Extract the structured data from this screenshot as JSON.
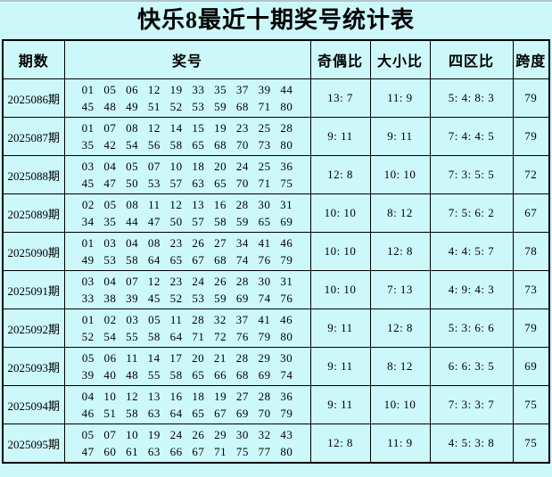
{
  "title": "快乐8最近十期奖号统计表",
  "colors": {
    "background": "#ccf8fa",
    "border": "#000000",
    "text": "#000000"
  },
  "headers": {
    "period": "期数",
    "numbers": "奖号",
    "odd_even": "奇偶比",
    "big_small": "大小比",
    "four_zone": "四区比",
    "span": "跨度"
  },
  "rows": [
    {
      "period": "2025086期",
      "nums1": "01 05 06 12 19 33 35 37 39 44",
      "nums2": "45 48 49 51 52 53 59 68 71 80",
      "odd_even": "13: 7",
      "big_small": "11: 9",
      "four_zone": "5: 4: 8: 3",
      "span": "79"
    },
    {
      "period": "2025087期",
      "nums1": "01 07 08 12 14 15 19 23 25 28",
      "nums2": "35 42 54 56 58 65 68 70 73 80",
      "odd_even": "9: 11",
      "big_small": "9: 11",
      "four_zone": "7: 4: 4: 5",
      "span": "79"
    },
    {
      "period": "2025088期",
      "nums1": "03 04 05 07 10 18 20 24 25 36",
      "nums2": "45 47 50 53 57 63 65 70 71 75",
      "odd_even": "12: 8",
      "big_small": "10: 10",
      "four_zone": "7: 3: 5: 5",
      "span": "72"
    },
    {
      "period": "2025089期",
      "nums1": "02 05 08 11 12 13 16 28 30 31",
      "nums2": "34 35 44 47 50 57 58 59 65 69",
      "odd_even": "10: 10",
      "big_small": "8: 12",
      "four_zone": "7: 5: 6: 2",
      "span": "67"
    },
    {
      "period": "2025090期",
      "nums1": "01 03 04 08 23 26 27 34 41 46",
      "nums2": "49 53 58 64 65 67 68 74 76 79",
      "odd_even": "10: 10",
      "big_small": "12: 8",
      "four_zone": "4: 4: 5: 7",
      "span": "78"
    },
    {
      "period": "2025091期",
      "nums1": "03 04 07 12 23 24 26 28 30 31",
      "nums2": "33 38 39 45 52 53 59 69 74 76",
      "odd_even": "10: 10",
      "big_small": "7: 13",
      "four_zone": "4: 9: 4: 3",
      "span": "73"
    },
    {
      "period": "2025092期",
      "nums1": "01 02 03 05 11 28 32 37 41 46",
      "nums2": "52 54 55 58 64 71 72 76 79 80",
      "odd_even": "9: 11",
      "big_small": "12: 8",
      "four_zone": "5: 3: 6: 6",
      "span": "79"
    },
    {
      "period": "2025093期",
      "nums1": "05 06 11 14 17 20 21 28 29 30",
      "nums2": "39 40 48 55 58 65 66 68 69 74",
      "odd_even": "9: 11",
      "big_small": "8: 12",
      "four_zone": "6: 6: 3: 5",
      "span": "69"
    },
    {
      "period": "2025094期",
      "nums1": "04 10 12 13 16 18 19 27 28 36",
      "nums2": "46 51 58 63 64 65 67 69 70 79",
      "odd_even": "9: 11",
      "big_small": "10: 10",
      "four_zone": "7: 3: 3: 7",
      "span": "75"
    },
    {
      "period": "2025095期",
      "nums1": "05 07 10 19 24 26 29 30 32 43",
      "nums2": "47 60 61 63 66 67 71 75 77 80",
      "odd_even": "12: 8",
      "big_small": "11: 9",
      "four_zone": "4: 5: 3: 8",
      "span": "75"
    }
  ],
  "chart_data": {
    "type": "table",
    "title": "快乐8最近十期奖号统计表",
    "columns": [
      "期数",
      "奖号",
      "奇偶比",
      "大小比",
      "四区比",
      "跨度"
    ],
    "rows": [
      [
        "2025086期",
        "01 05 06 12 19 33 35 37 39 44 45 48 49 51 52 53 59 68 71 80",
        "13:7",
        "11:9",
        "5:4:8:3",
        79
      ],
      [
        "2025087期",
        "01 07 08 12 14 15 19 23 25 28 35 42 54 56 58 65 68 70 73 80",
        "9:11",
        "9:11",
        "7:4:4:5",
        79
      ],
      [
        "2025088期",
        "03 04 05 07 10 18 20 24 25 36 45 47 50 53 57 63 65 70 71 75",
        "12:8",
        "10:10",
        "7:3:5:5",
        72
      ],
      [
        "2025089期",
        "02 05 08 11 12 13 16 28 30 31 34 35 44 47 50 57 58 59 65 69",
        "10:10",
        "8:12",
        "7:5:6:2",
        67
      ],
      [
        "2025090期",
        "01 03 04 08 23 26 27 34 41 46 49 53 58 64 65 67 68 74 76 79",
        "10:10",
        "12:8",
        "4:4:5:7",
        78
      ],
      [
        "2025091期",
        "03 04 07 12 23 24 26 28 30 31 33 38 39 45 52 53 59 69 74 76",
        "10:10",
        "7:13",
        "4:9:4:3",
        73
      ],
      [
        "2025092期",
        "01 02 03 05 11 28 32 37 41 46 52 54 55 58 64 71 72 76 79 80",
        "9:11",
        "12:8",
        "5:3:6:6",
        79
      ],
      [
        "2025093期",
        "05 06 11 14 17 20 21 28 29 30 39 40 48 55 58 65 66 68 69 74",
        "9:11",
        "8:12",
        "6:6:3:5",
        69
      ],
      [
        "2025094期",
        "04 10 12 13 16 18 19 27 28 36 46 51 58 63 64 65 67 69 70 79",
        "9:11",
        "10:10",
        "7:3:3:7",
        75
      ],
      [
        "2025095期",
        "05 07 10 19 24 26 29 30 32 43 47 60 61 63 66 67 71 75 77 80",
        "12:8",
        "11:9",
        "4:5:3:8",
        75
      ]
    ]
  }
}
